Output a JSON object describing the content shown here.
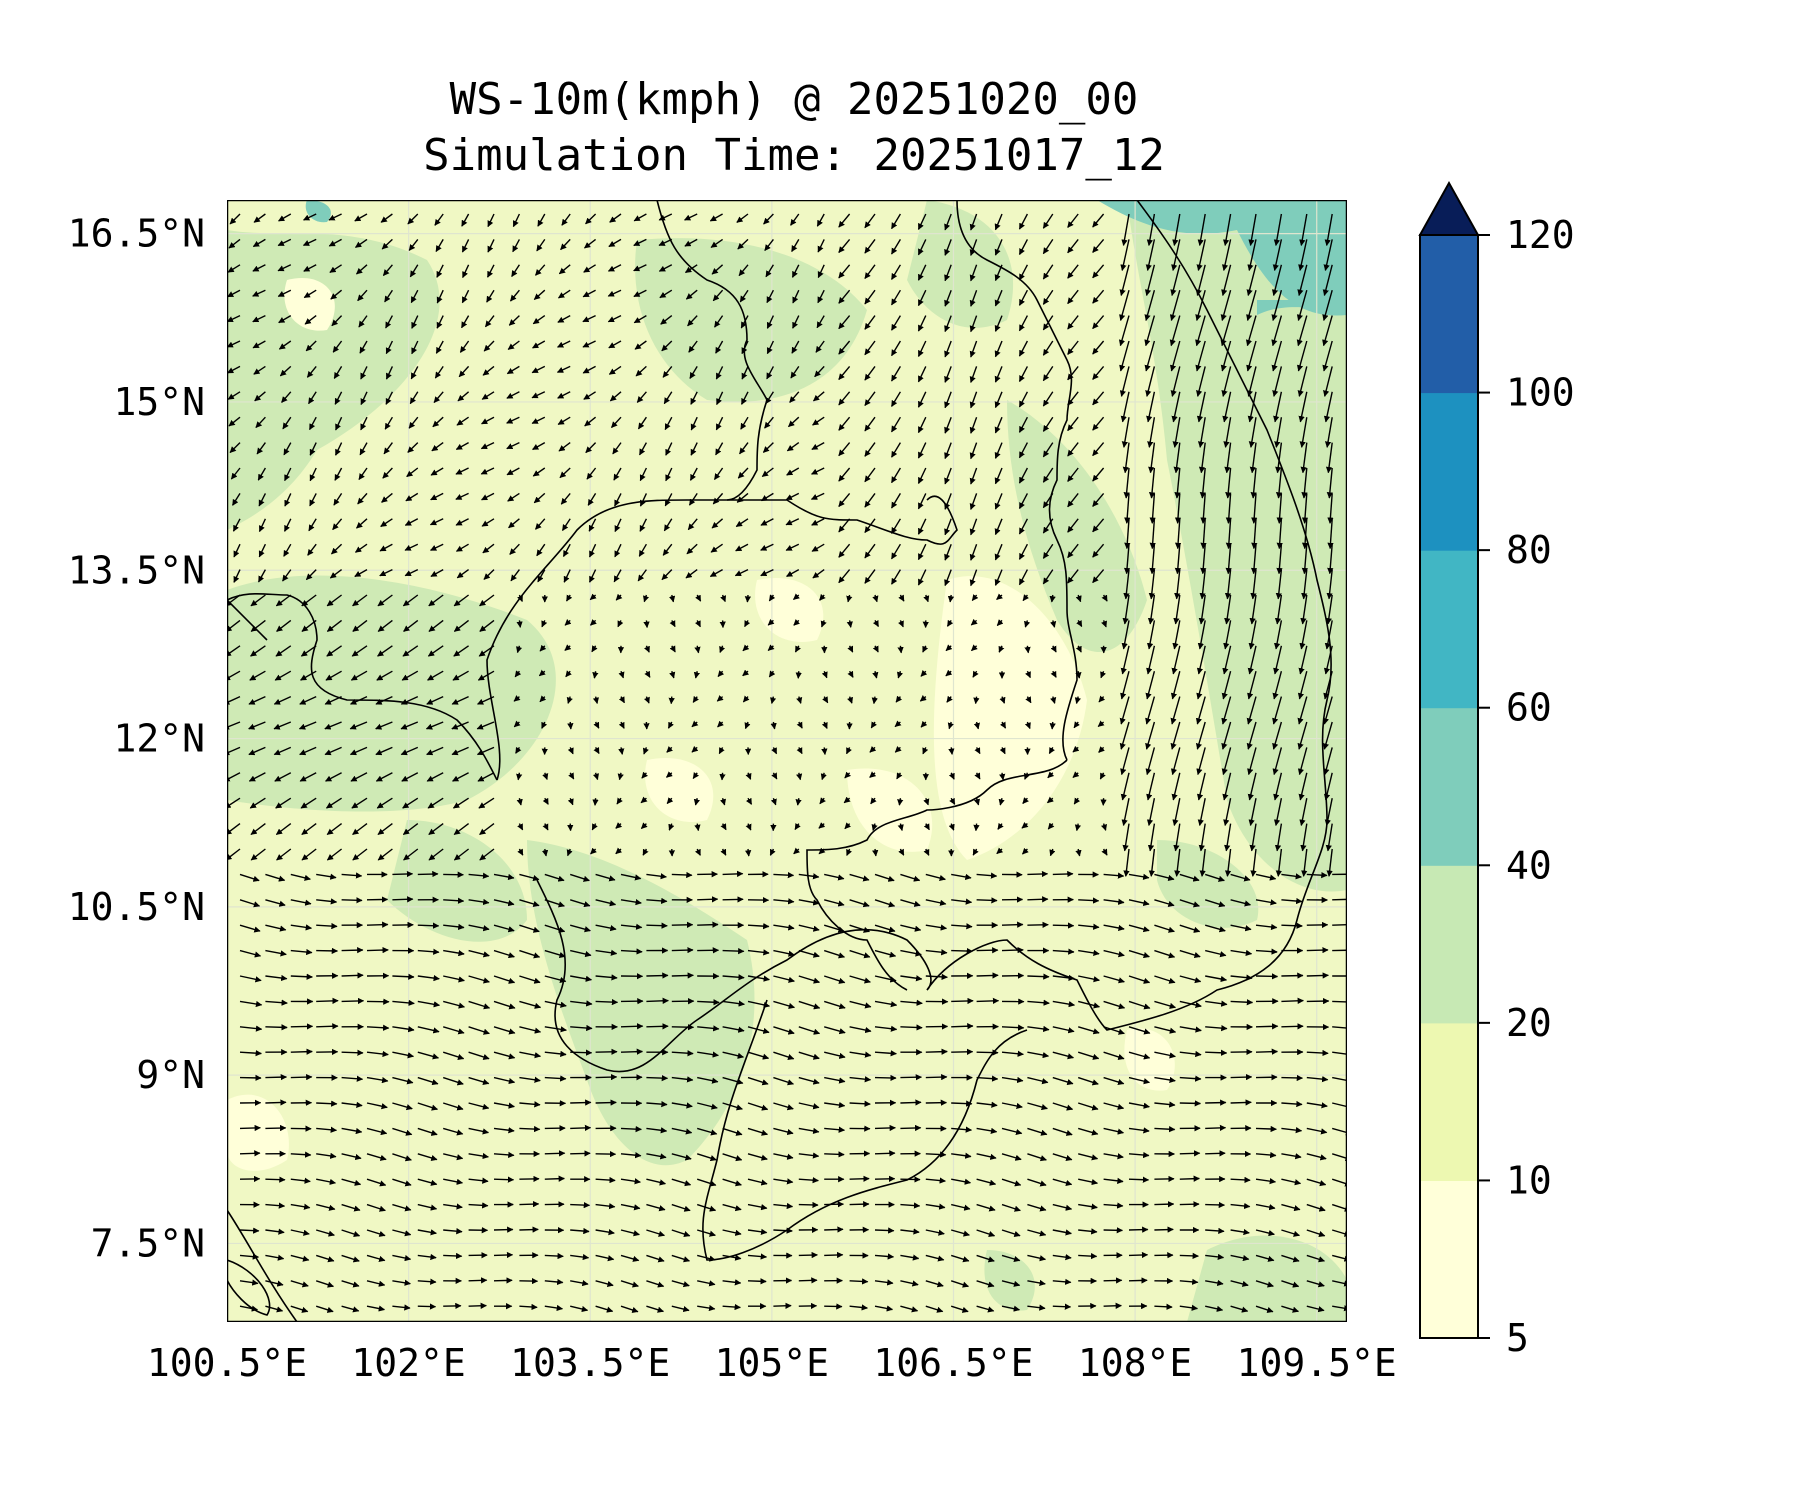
{
  "title_line1": "WS-10m(kmph) @ 20251020_00",
  "title_line2": "Simulation Time: 20251017_12",
  "map": {
    "lon_range": [
      100.5,
      109.75
    ],
    "lat_range": [
      6.8,
      16.8
    ],
    "lon_ticks": [
      {
        "value": 100.5,
        "label": "100.5°E"
      },
      {
        "value": 102.0,
        "label": "102°E"
      },
      {
        "value": 103.5,
        "label": "103.5°E"
      },
      {
        "value": 105.0,
        "label": "105°E"
      },
      {
        "value": 106.5,
        "label": "106.5°E"
      },
      {
        "value": 108.0,
        "label": "108°E"
      },
      {
        "value": 109.5,
        "label": "109.5°E"
      }
    ],
    "lat_ticks": [
      {
        "value": 16.5,
        "label": "16.5°N"
      },
      {
        "value": 15.0,
        "label": "15°N"
      },
      {
        "value": 13.5,
        "label": "13.5°N"
      },
      {
        "value": 12.0,
        "label": "12°N"
      },
      {
        "value": 10.5,
        "label": "10.5°N"
      },
      {
        "value": 9.0,
        "label": "9°N"
      },
      {
        "value": 7.5,
        "label": "7.5°N"
      }
    ],
    "background_color": "#f0f8c4",
    "gridlines": true,
    "vector_field": "wind arrows at 10 m"
  },
  "colorbar": {
    "levels": [
      {
        "label": "5",
        "value": 5
      },
      {
        "label": "10",
        "value": 10
      },
      {
        "label": "20",
        "value": 20
      },
      {
        "label": "40",
        "value": 40
      },
      {
        "label": "60",
        "value": 60
      },
      {
        "label": "80",
        "value": 80
      },
      {
        "label": "100",
        "value": 100
      },
      {
        "label": "120",
        "value": 120
      }
    ],
    "colors": [
      "#ffffd9",
      "#edf8b1",
      "#c7e9b4",
      "#7fcdbb",
      "#41b6c4",
      "#1d91c0",
      "#225ea8",
      "#0c2c84"
    ],
    "extend": "max",
    "extend_color": "#081d58"
  }
}
